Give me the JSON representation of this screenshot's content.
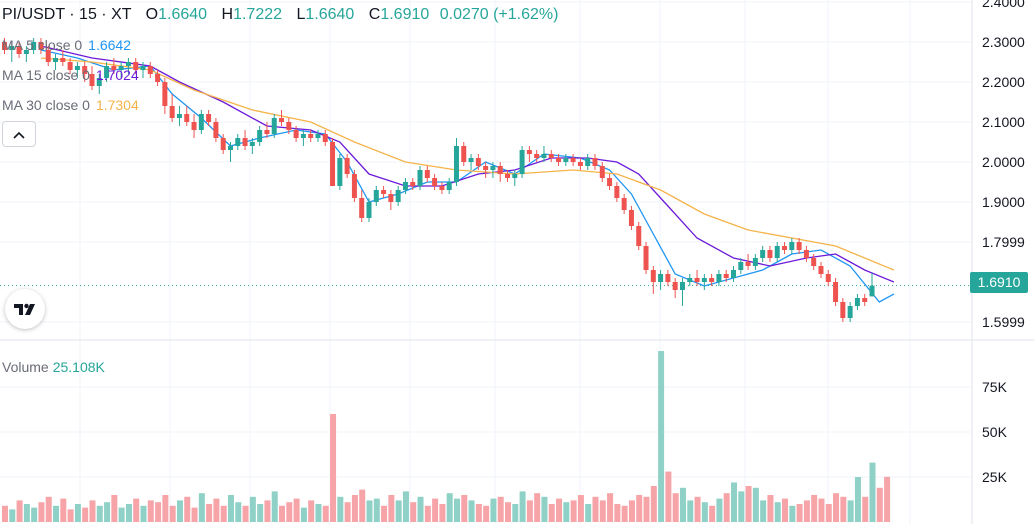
{
  "header": {
    "symbol": "PI/USDT · 15 · XT",
    "open_label": "O",
    "open": "1.6640",
    "high_label": "H",
    "high": "1.7222",
    "low_label": "L",
    "low": "1.6640",
    "close_label": "C",
    "close": "1.6910",
    "change": "0.0270 (+1.62%)"
  },
  "indicators": [
    {
      "label": "MA 5 close 0",
      "value": "1.6642",
      "color": "#2196f3"
    },
    {
      "label": "MA 15 close 0",
      "value": "1.7024",
      "color": "#6c1bd8"
    },
    {
      "label": "MA 30 close 0",
      "value": "1.7304",
      "color": "#f5b34a"
    }
  ],
  "collapse_icon": "chevron-up-icon",
  "logo": "tradingview-logo",
  "volume": {
    "label": "Volume",
    "value": "25.108K"
  },
  "last_price": "1.6910",
  "colors": {
    "up": "#26a69a",
    "down": "#ef5350",
    "up_vol": "#8fd1c7",
    "down_vol": "#f6a4a8",
    "grid": "#f0f3fa",
    "axis_text": "#131722"
  },
  "chart_data": {
    "type": "candlestick",
    "price_axis_ticks": [
      "2.4000",
      "2.3000",
      "2.2000",
      "2.1000",
      "2.0000",
      "1.9000",
      "1.7999",
      "1.5999"
    ],
    "volume_axis_ticks": [
      "75K",
      "50K",
      "25K"
    ],
    "ylim": [
      1.53,
      2.4
    ],
    "volume_ylim": [
      0,
      100000
    ],
    "candles": [
      [
        2.3,
        2.31,
        2.27,
        2.28
      ],
      [
        2.28,
        2.3,
        2.25,
        2.29
      ],
      [
        2.29,
        2.3,
        2.26,
        2.27
      ],
      [
        2.27,
        2.29,
        2.25,
        2.28
      ],
      [
        2.28,
        2.31,
        2.27,
        2.3
      ],
      [
        2.3,
        2.31,
        2.27,
        2.28
      ],
      [
        2.28,
        2.29,
        2.24,
        2.25
      ],
      [
        2.25,
        2.27,
        2.23,
        2.26
      ],
      [
        2.26,
        2.28,
        2.24,
        2.25
      ],
      [
        2.25,
        2.26,
        2.22,
        2.23
      ],
      [
        2.23,
        2.25,
        2.21,
        2.24
      ],
      [
        2.24,
        2.25,
        2.2,
        2.22
      ],
      [
        2.22,
        2.24,
        2.18,
        2.19
      ],
      [
        2.19,
        2.22,
        2.17,
        2.21
      ],
      [
        2.21,
        2.25,
        2.2,
        2.24
      ],
      [
        2.24,
        2.26,
        2.22,
        2.23
      ],
      [
        2.23,
        2.25,
        2.21,
        2.24
      ],
      [
        2.24,
        2.26,
        2.22,
        2.25
      ],
      [
        2.25,
        2.26,
        2.22,
        2.23
      ],
      [
        2.23,
        2.25,
        2.21,
        2.24
      ],
      [
        2.24,
        2.25,
        2.21,
        2.22
      ],
      [
        2.22,
        2.23,
        2.19,
        2.2
      ],
      [
        2.2,
        2.21,
        2.12,
        2.14
      ],
      [
        2.14,
        2.17,
        2.1,
        2.11
      ],
      [
        2.11,
        2.14,
        2.09,
        2.12
      ],
      [
        2.12,
        2.14,
        2.09,
        2.1
      ],
      [
        2.1,
        2.12,
        2.06,
        2.08
      ],
      [
        2.08,
        2.13,
        2.07,
        2.12
      ],
      [
        2.12,
        2.13,
        2.09,
        2.1
      ],
      [
        2.1,
        2.11,
        2.05,
        2.06
      ],
      [
        2.06,
        2.07,
        2.02,
        2.03
      ],
      [
        2.03,
        2.05,
        2.0,
        2.04
      ],
      [
        2.04,
        2.07,
        2.03,
        2.06
      ],
      [
        2.06,
        2.08,
        2.03,
        2.04
      ],
      [
        2.04,
        2.06,
        2.02,
        2.05
      ],
      [
        2.05,
        2.09,
        2.04,
        2.08
      ],
      [
        2.08,
        2.1,
        2.06,
        2.07
      ],
      [
        2.07,
        2.12,
        2.06,
        2.11
      ],
      [
        2.11,
        2.13,
        2.09,
        2.1
      ],
      [
        2.1,
        2.11,
        2.07,
        2.08
      ],
      [
        2.08,
        2.09,
        2.05,
        2.06
      ],
      [
        2.06,
        2.08,
        2.04,
        2.07
      ],
      [
        2.07,
        2.08,
        2.05,
        2.06
      ],
      [
        2.06,
        2.08,
        2.05,
        2.07
      ],
      [
        2.07,
        2.08,
        2.04,
        2.05
      ],
      [
        2.05,
        2.06,
        1.94,
        1.94
      ],
      [
        1.94,
        2.02,
        1.93,
        2.01
      ],
      [
        2.01,
        2.02,
        1.96,
        1.97
      ],
      [
        1.97,
        1.98,
        1.9,
        1.91
      ],
      [
        1.91,
        1.93,
        1.85,
        1.86
      ],
      [
        1.86,
        1.91,
        1.85,
        1.9
      ],
      [
        1.9,
        1.94,
        1.89,
        1.93
      ],
      [
        1.93,
        1.94,
        1.91,
        1.92
      ],
      [
        1.92,
        1.93,
        1.88,
        1.9
      ],
      [
        1.9,
        1.94,
        1.89,
        1.93
      ],
      [
        1.93,
        1.96,
        1.92,
        1.95
      ],
      [
        1.95,
        1.96,
        1.93,
        1.94
      ],
      [
        1.94,
        1.99,
        1.93,
        1.98
      ],
      [
        1.98,
        1.99,
        1.95,
        1.96
      ],
      [
        1.96,
        1.97,
        1.93,
        1.94
      ],
      [
        1.94,
        1.95,
        1.92,
        1.93
      ],
      [
        1.93,
        1.96,
        1.92,
        1.95
      ],
      [
        1.95,
        2.06,
        1.94,
        2.04
      ],
      [
        2.04,
        2.05,
        1.99,
        2.0
      ],
      [
        2.0,
        2.02,
        1.98,
        2.01
      ],
      [
        2.01,
        2.02,
        1.98,
        1.99
      ],
      [
        1.99,
        2.0,
        1.96,
        1.98
      ],
      [
        1.98,
        2.0,
        1.96,
        1.99
      ],
      [
        1.99,
        2.0,
        1.95,
        1.97
      ],
      [
        1.97,
        1.98,
        1.95,
        1.96
      ],
      [
        1.96,
        1.98,
        1.94,
        1.97
      ],
      [
        1.97,
        2.04,
        1.96,
        2.03
      ],
      [
        2.03,
        2.04,
        2.0,
        2.02
      ],
      [
        2.02,
        2.03,
        2.0,
        2.01
      ],
      [
        2.01,
        2.04,
        2.0,
        2.02
      ],
      [
        2.02,
        2.03,
        2.0,
        2.01
      ],
      [
        2.01,
        2.02,
        1.99,
        2.0
      ],
      [
        2.0,
        2.02,
        1.99,
        2.01
      ],
      [
        2.01,
        2.02,
        1.99,
        2.0
      ],
      [
        2.0,
        2.01,
        1.98,
        1.99
      ],
      [
        1.99,
        2.02,
        1.98,
        2.01
      ],
      [
        2.01,
        2.02,
        1.98,
        1.99
      ],
      [
        1.99,
        2.0,
        1.95,
        1.96
      ],
      [
        1.96,
        1.97,
        1.93,
        1.94
      ],
      [
        1.94,
        1.95,
        1.9,
        1.91
      ],
      [
        1.91,
        1.92,
        1.87,
        1.88
      ],
      [
        1.88,
        1.89,
        1.83,
        1.84
      ],
      [
        1.84,
        1.85,
        1.78,
        1.79
      ],
      [
        1.79,
        1.8,
        1.72,
        1.73
      ],
      [
        1.73,
        1.74,
        1.67,
        1.7
      ],
      [
        1.7,
        1.73,
        1.68,
        1.72
      ],
      [
        1.72,
        1.73,
        1.69,
        1.7
      ],
      [
        1.7,
        1.71,
        1.66,
        1.68
      ],
      [
        1.68,
        1.71,
        1.64,
        1.7
      ],
      [
        1.7,
        1.72,
        1.69,
        1.71
      ],
      [
        1.71,
        1.73,
        1.69,
        1.7
      ],
      [
        1.7,
        1.72,
        1.68,
        1.71
      ],
      [
        1.71,
        1.72,
        1.69,
        1.7
      ],
      [
        1.7,
        1.73,
        1.69,
        1.72
      ],
      [
        1.72,
        1.73,
        1.7,
        1.71
      ],
      [
        1.71,
        1.74,
        1.7,
        1.73
      ],
      [
        1.73,
        1.76,
        1.72,
        1.75
      ],
      [
        1.75,
        1.77,
        1.73,
        1.74
      ],
      [
        1.74,
        1.77,
        1.73,
        1.76
      ],
      [
        1.76,
        1.79,
        1.75,
        1.78
      ],
      [
        1.78,
        1.79,
        1.75,
        1.76
      ],
      [
        1.76,
        1.8,
        1.75,
        1.79
      ],
      [
        1.79,
        1.8,
        1.77,
        1.78
      ],
      [
        1.78,
        1.81,
        1.77,
        1.8
      ],
      [
        1.8,
        1.81,
        1.77,
        1.78
      ],
      [
        1.78,
        1.79,
        1.75,
        1.76
      ],
      [
        1.76,
        1.77,
        1.73,
        1.74
      ],
      [
        1.74,
        1.75,
        1.71,
        1.72
      ],
      [
        1.72,
        1.73,
        1.69,
        1.7
      ],
      [
        1.7,
        1.71,
        1.64,
        1.65
      ],
      [
        1.65,
        1.66,
        1.6,
        1.61
      ],
      [
        1.61,
        1.65,
        1.6,
        1.64
      ],
      [
        1.64,
        1.67,
        1.63,
        1.66
      ],
      [
        1.66,
        1.67,
        1.64,
        1.65
      ],
      [
        1.664,
        1.7222,
        1.664,
        1.691
      ]
    ],
    "volumes": [
      9000,
      7000,
      12000,
      10000,
      8000,
      11000,
      14000,
      9000,
      13000,
      7000,
      10000,
      8000,
      12000,
      9000,
      11000,
      15000,
      8000,
      10000,
      13000,
      9000,
      12000,
      11000,
      15000,
      9000,
      12000,
      14000,
      8000,
      16000,
      10000,
      13000,
      9000,
      15000,
      11000,
      9000,
      14000,
      10000,
      12000,
      17000,
      9000,
      11000,
      13000,
      8000,
      12000,
      10000,
      9000,
      60000,
      14000,
      11000,
      15000,
      18000,
      12000,
      13000,
      9000,
      15000,
      12000,
      17000,
      11000,
      14000,
      9000,
      13000,
      10000,
      16000,
      13000,
      15000,
      12000,
      10000,
      9000,
      13000,
      14000,
      11000,
      10000,
      17000,
      12000,
      16000,
      14000,
      10000,
      13000,
      11000,
      12000,
      15000,
      10000,
      14000,
      12000,
      16000,
      10000,
      9000,
      12000,
      15000,
      14000,
      20000,
      95000,
      28000,
      16000,
      19000,
      12000,
      14000,
      11000,
      9000,
      13000,
      16000,
      22000,
      17000,
      20000,
      19000,
      12000,
      15000,
      11000,
      13000,
      9000,
      10000,
      12000,
      15000,
      13000,
      10000,
      16000,
      14000,
      12000,
      25000,
      14000,
      33000,
      19000,
      25108
    ],
    "ma": [
      {
        "label": "MA 5",
        "color": "#2196f3",
        "points": [
          [
            5,
            2.28
          ],
          [
            10,
            2.26
          ],
          [
            15,
            2.23
          ],
          [
            20,
            2.24
          ],
          [
            23,
            2.17
          ],
          [
            27,
            2.11
          ],
          [
            31,
            2.04
          ],
          [
            35,
            2.06
          ],
          [
            40,
            2.08
          ],
          [
            44,
            2.07
          ],
          [
            47,
            2.0
          ],
          [
            50,
            1.9
          ],
          [
            54,
            1.92
          ],
          [
            58,
            1.95
          ],
          [
            62,
            1.95
          ],
          [
            66,
            2.0
          ],
          [
            70,
            1.97
          ],
          [
            74,
            2.02
          ],
          [
            79,
            2.01
          ],
          [
            83,
            1.98
          ],
          [
            86,
            1.92
          ],
          [
            89,
            1.82
          ],
          [
            92,
            1.72
          ],
          [
            96,
            1.69
          ],
          [
            100,
            1.71
          ],
          [
            104,
            1.73
          ],
          [
            108,
            1.77
          ],
          [
            112,
            1.78
          ],
          [
            116,
            1.74
          ],
          [
            120,
            1.65
          ],
          [
            122,
            1.67
          ]
        ]
      },
      {
        "label": "MA 15",
        "color": "#6c1bd8",
        "points": [
          [
            5,
            2.29
          ],
          [
            12,
            2.26
          ],
          [
            20,
            2.24
          ],
          [
            24,
            2.2
          ],
          [
            30,
            2.15
          ],
          [
            36,
            2.09
          ],
          [
            42,
            2.08
          ],
          [
            46,
            2.05
          ],
          [
            50,
            1.97
          ],
          [
            55,
            1.94
          ],
          [
            60,
            1.94
          ],
          [
            65,
            1.97
          ],
          [
            70,
            1.98
          ],
          [
            75,
            2.01
          ],
          [
            80,
            2.01
          ],
          [
            84,
            2.0
          ],
          [
            87,
            1.97
          ],
          [
            91,
            1.89
          ],
          [
            95,
            1.81
          ],
          [
            100,
            1.76
          ],
          [
            105,
            1.74
          ],
          [
            110,
            1.76
          ],
          [
            114,
            1.77
          ],
          [
            118,
            1.73
          ],
          [
            122,
            1.7
          ]
        ]
      },
      {
        "label": "MA 30",
        "color": "#f5b34a",
        "points": [
          [
            5,
            2.26
          ],
          [
            12,
            2.25
          ],
          [
            20,
            2.23
          ],
          [
            26,
            2.18
          ],
          [
            34,
            2.13
          ],
          [
            42,
            2.1
          ],
          [
            48,
            2.05
          ],
          [
            55,
            2.0
          ],
          [
            62,
            1.98
          ],
          [
            70,
            1.97
          ],
          [
            78,
            1.98
          ],
          [
            84,
            1.97
          ],
          [
            90,
            1.93
          ],
          [
            96,
            1.87
          ],
          [
            102,
            1.83
          ],
          [
            108,
            1.81
          ],
          [
            114,
            1.79
          ],
          [
            118,
            1.76
          ],
          [
            122,
            1.73
          ]
        ]
      }
    ]
  }
}
